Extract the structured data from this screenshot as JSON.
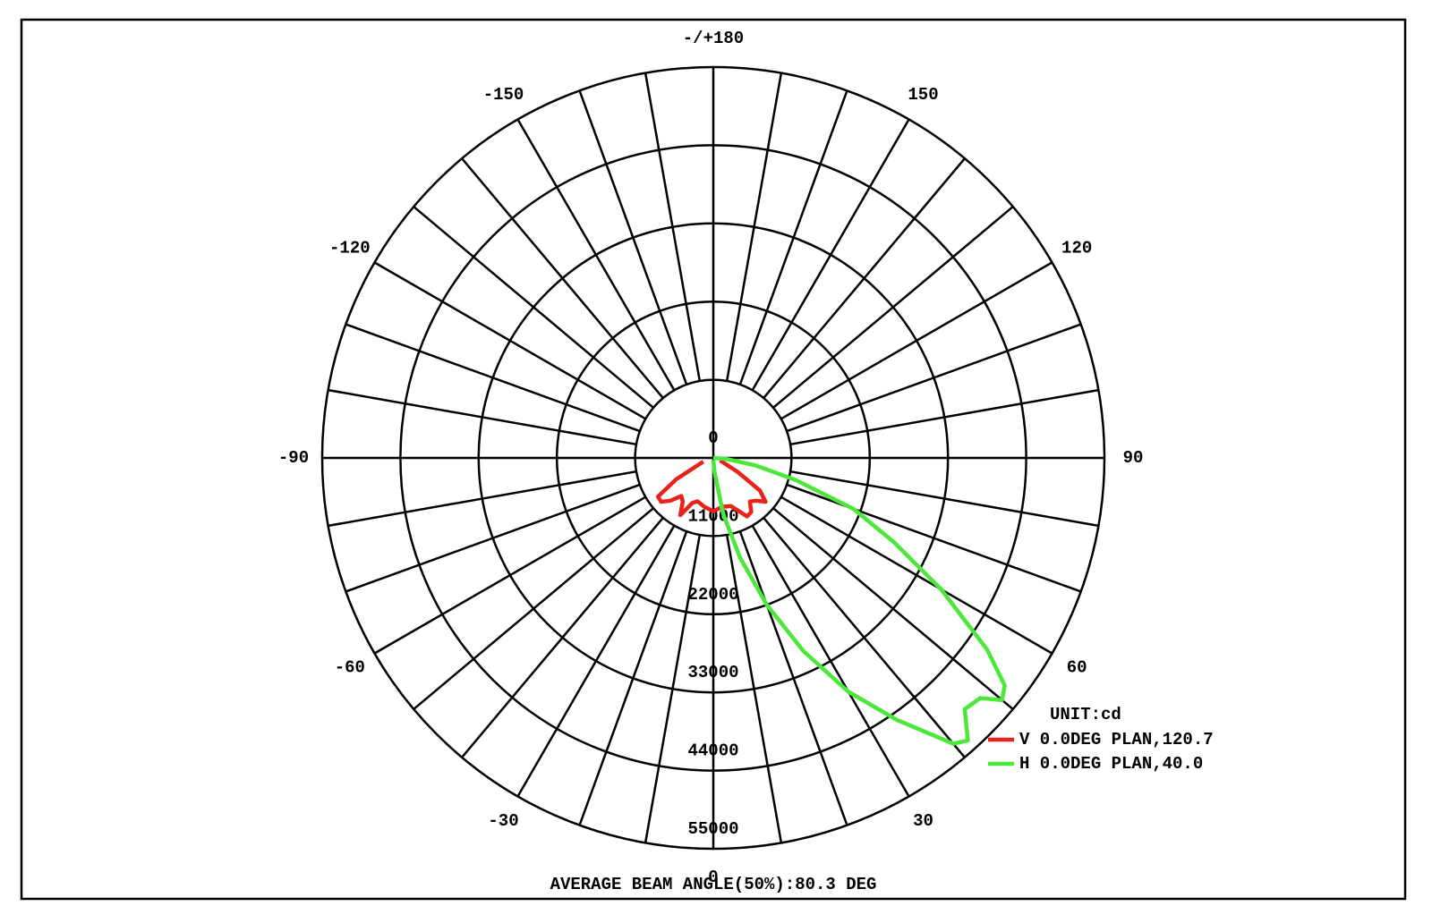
{
  "chart_data": {
    "type": "polar",
    "unit_label": "UNIT:cd",
    "footer": "AVERAGE BEAM ANGLE(50%):80.3 DEG",
    "rlim": [
      0,
      55000
    ],
    "rticks": [
      0,
      11000,
      22000,
      33000,
      44000,
      55000
    ],
    "thetaticks": [
      {
        "value": 180,
        "label": "-/+180"
      },
      -150,
      150,
      -120,
      120,
      -90,
      90,
      -60,
      60,
      -30,
      30,
      0
    ],
    "theta_grid_step": 10,
    "series": [
      {
        "name": "V 0.0DEG PLAN,120.7",
        "color": "#e8231a",
        "x": [
          -70,
          -60,
          -55,
          -50,
          -45,
          -40,
          -35,
          -30,
          -25,
          -20,
          -10,
          0,
          10,
          20,
          30,
          35,
          40,
          45,
          50,
          55,
          60,
          70
        ],
        "values": [
          1500,
          6000,
          9500,
          9600,
          8500,
          7000,
          7500,
          9300,
          7000,
          6500,
          7000,
          7500,
          7000,
          7200,
          9500,
          9300,
          8000,
          8500,
          9600,
          8000,
          4000,
          1000
        ]
      },
      {
        "name": "H 0.0DEG PLAN,40.0",
        "color": "#4be83a",
        "x": [
          0,
          5,
          10,
          15,
          20,
          25,
          30,
          35,
          40,
          42,
          45,
          48,
          50,
          52,
          55,
          60,
          65,
          70,
          75,
          80,
          85,
          90
        ],
        "values": [
          300,
          2000,
          8000,
          14500,
          22000,
          30000,
          38000,
          45000,
          52500,
          53500,
          50000,
          50500,
          53000,
          52000,
          47000,
          37000,
          28000,
          21000,
          12000,
          6000,
          2000,
          0
        ]
      }
    ]
  }
}
